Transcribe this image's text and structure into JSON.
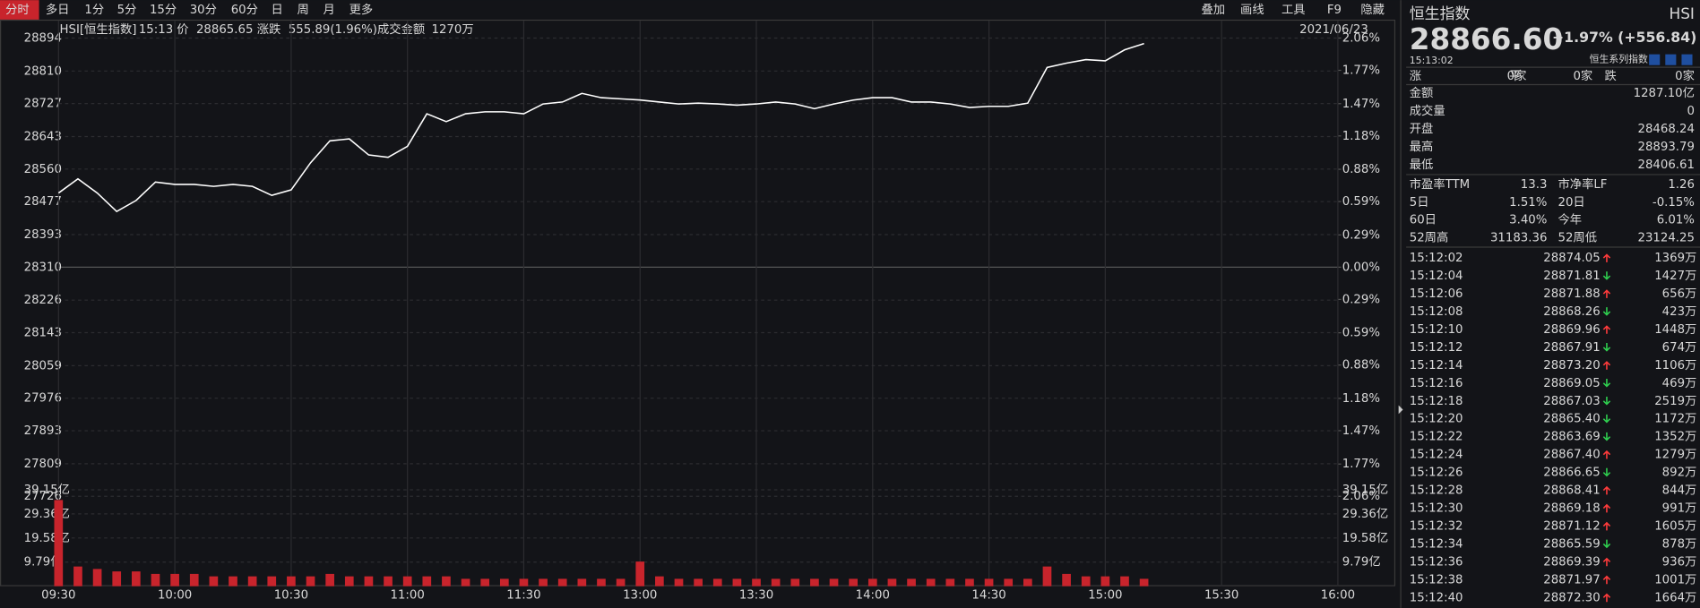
{
  "toolbar": {
    "periods": [
      "分时",
      "多日",
      "1分",
      "5分",
      "15分",
      "30分",
      "60分",
      "日",
      "周",
      "月",
      "更多"
    ],
    "tools": [
      "叠加",
      "画线",
      "工具",
      "F9",
      "隐藏"
    ]
  },
  "header": {
    "symbol": "HSI[恒生指数]",
    "time": "15:13",
    "price_label": "价",
    "price": "28865.65",
    "change_label": "涨跌",
    "change": "555.89(1.96%)",
    "amount_label": "成交金额",
    "amount": "1270万",
    "date": "2021/06/23"
  },
  "chart_data": [
    {
      "type": "line",
      "categories": [
        "09:30",
        "09:35",
        "09:40",
        "09:45",
        "09:50",
        "09:55",
        "10:00",
        "10:05",
        "10:10",
        "10:15",
        "10:20",
        "10:25",
        "10:30",
        "10:35",
        "10:40",
        "10:45",
        "10:50",
        "10:55",
        "11:00",
        "11:05",
        "11:10",
        "11:15",
        "11:20",
        "11:25",
        "11:30",
        "11:35",
        "11:40",
        "11:45",
        "11:50",
        "11:55",
        "13:00",
        "13:05",
        "13:10",
        "13:15",
        "13:20",
        "13:25",
        "13:30",
        "13:35",
        "13:40",
        "13:45",
        "13:50",
        "13:55",
        "14:00",
        "14:05",
        "14:10",
        "14:15",
        "14:20",
        "14:25",
        "14:30",
        "14:35",
        "14:40",
        "14:45",
        "14:50",
        "14:55",
        "15:00",
        "15:05",
        "15:10"
      ],
      "series": [
        {
          "color": "#ffffff",
          "values": [
            28499,
            28535,
            28499,
            28452,
            28480,
            28527,
            28521,
            28521,
            28516,
            28521,
            28516,
            28493,
            28507,
            28576,
            28632,
            28637,
            28596,
            28590,
            28618,
            28701,
            28681,
            28701,
            28706,
            28706,
            28701,
            28726,
            28731,
            28753,
            28742,
            28739,
            28736,
            28731,
            28726,
            28728,
            28726,
            28723,
            28726,
            28731,
            28726,
            28714,
            28726,
            28736,
            28742,
            28742,
            28731,
            28731,
            28726,
            28717,
            28720,
            28720,
            28728,
            28819,
            28830,
            28839,
            28836,
            28864,
            28880
          ]
        }
      ],
      "ylim": [
        27726,
        28894
      ],
      "yticks": [
        28894,
        28810,
        28727,
        28643,
        28560,
        28477,
        28393,
        28310,
        28226,
        28143,
        28059,
        27976,
        27893,
        27809,
        27726
      ],
      "y2lim": [
        -2.06,
        2.06
      ],
      "y2ticks": [
        {
          "value": 2.06,
          "label": "2.06%"
        },
        {
          "value": 1.77,
          "label": "1.77%"
        },
        {
          "value": 1.47,
          "label": "1.47%"
        },
        {
          "value": 1.18,
          "label": "1.18%"
        },
        {
          "value": 0.88,
          "label": "0.88%"
        },
        {
          "value": 0.59,
          "label": "0.59%"
        },
        {
          "value": 0.29,
          "label": "0.29%"
        },
        {
          "value": 0,
          "label": "0.00%"
        },
        {
          "value": -0.29,
          "label": "0.29%"
        },
        {
          "value": -0.59,
          "label": "0.59%"
        },
        {
          "value": -0.88,
          "label": "0.88%"
        },
        {
          "value": -1.18,
          "label": "1.18%"
        },
        {
          "value": -1.47,
          "label": "1.47%"
        },
        {
          "value": -1.77,
          "label": "1.77%"
        },
        {
          "value": -2.06,
          "label": "2.06%"
        }
      ],
      "xticks": [
        "09:30",
        "10:00",
        "10:30",
        "11:00",
        "11:30",
        "13:00",
        "13:30",
        "14:00",
        "14:30",
        "15:00",
        "15:30",
        "16:00"
      ],
      "grid": true
    },
    {
      "type": "bar",
      "categories": [
        "09:30",
        "09:35",
        "09:40",
        "09:45",
        "09:50",
        "09:55",
        "10:00",
        "10:05",
        "10:10",
        "10:15",
        "10:20",
        "10:25",
        "10:30",
        "10:35",
        "10:40",
        "10:45",
        "10:50",
        "10:55",
        "11:00",
        "11:05",
        "11:10",
        "11:15",
        "11:20",
        "11:25",
        "11:30",
        "11:35",
        "11:40",
        "11:45",
        "11:50",
        "11:55",
        "13:00",
        "13:05",
        "13:10",
        "13:15",
        "13:20",
        "13:25",
        "13:30",
        "13:35",
        "13:40",
        "13:45",
        "13:50",
        "13:55",
        "14:00",
        "14:05",
        "14:10",
        "14:15",
        "14:20",
        "14:25",
        "14:30",
        "14:35",
        "14:40",
        "14:45",
        "14:50",
        "14:55",
        "15:00",
        "15:05",
        "15:10"
      ],
      "values": [
        35,
        8,
        7,
        6,
        6,
        5,
        5,
        5,
        4,
        4,
        4,
        4,
        4,
        4,
        5,
        4,
        4,
        4,
        4,
        4,
        4,
        3,
        3,
        3,
        3,
        3,
        3,
        3,
        3,
        3,
        10,
        4,
        3,
        3,
        3,
        3,
        3,
        3,
        3,
        3,
        3,
        3,
        3,
        3,
        3,
        3,
        3,
        3,
        3,
        3,
        3,
        8,
        5,
        4,
        4,
        4,
        3
      ],
      "color": "#c8242c",
      "ylim": [
        0,
        39.15
      ],
      "yticks": [
        {
          "value": 39.15,
          "label": "39.15亿"
        },
        {
          "value": 29.36,
          "label": "29.36亿"
        },
        {
          "value": 19.58,
          "label": "19.58亿"
        },
        {
          "value": 9.79,
          "label": "9.79亿"
        }
      ],
      "grid": true
    }
  ],
  "sidebar": {
    "title": "恒生指数",
    "code": "HSI",
    "price": "28866.60",
    "change": "+1.97% (+556.84)",
    "time": "15:13:02",
    "series_label": "恒生系列指数",
    "breadth": [
      {
        "label": "涨",
        "value": "0家"
      },
      {
        "label": "平",
        "value": "0家"
      },
      {
        "label": "跌",
        "value": "0家"
      }
    ],
    "stats": [
      {
        "label": "金额",
        "value": "1287.10亿",
        "color": "#d8d8d8"
      },
      {
        "label": "成交量",
        "value": "0",
        "color": "#d8d8d8"
      },
      {
        "label": "开盘",
        "value": "28468.24",
        "color": "#ff3b3b"
      },
      {
        "label": "最高",
        "value": "28893.79",
        "color": "#ff3b3b"
      },
      {
        "label": "最低",
        "value": "28406.61",
        "color": "#ff3b3b"
      }
    ],
    "stats2": [
      [
        {
          "label": "市盈率TTM",
          "value": "13.3",
          "color": "#d8d8d8"
        },
        {
          "label": "市净率LF",
          "value": "1.26",
          "color": "#d8d8d8"
        }
      ],
      [
        {
          "label": "5日",
          "value": "1.51%",
          "color": "#ff3b3b"
        },
        {
          "label": "20日",
          "value": "-0.15%",
          "color": "#2fcf4f"
        }
      ],
      [
        {
          "label": "60日",
          "value": "3.40%",
          "color": "#ff3b3b"
        },
        {
          "label": "今年",
          "value": "6.01%",
          "color": "#ff3b3b"
        }
      ],
      [
        {
          "label": "52周高",
          "value": "31183.36",
          "color": "#d8d8d8"
        },
        {
          "label": "52周低",
          "value": "23124.25",
          "color": "#d8d8d8"
        }
      ]
    ],
    "trades": [
      {
        "time": "15:12:02",
        "price": "28874.05",
        "volume": "1369万"
      },
      {
        "time": "15:12:04",
        "price": "28871.81",
        "volume": "1427万"
      },
      {
        "time": "15:12:06",
        "price": "28871.88",
        "volume": "656万"
      },
      {
        "time": "15:12:08",
        "price": "28868.26",
        "volume": "423万"
      },
      {
        "time": "15:12:10",
        "price": "28869.96",
        "volume": "1448万"
      },
      {
        "time": "15:12:12",
        "price": "28867.91",
        "volume": "674万"
      },
      {
        "time": "15:12:14",
        "price": "28873.20",
        "volume": "1106万"
      },
      {
        "time": "15:12:16",
        "price": "28869.05",
        "volume": "469万"
      },
      {
        "time": "15:12:18",
        "price": "28867.03",
        "volume": "2519万"
      },
      {
        "time": "15:12:20",
        "price": "28865.40",
        "volume": "1172万"
      },
      {
        "time": "15:12:22",
        "price": "28863.69",
        "volume": "1352万"
      },
      {
        "time": "15:12:24",
        "price": "28867.40",
        "volume": "1279万"
      },
      {
        "time": "15:12:26",
        "price": "28866.65",
        "volume": "892万"
      },
      {
        "time": "15:12:28",
        "price": "28868.41",
        "volume": "844万"
      },
      {
        "time": "15:12:30",
        "price": "28869.18",
        "volume": "991万"
      },
      {
        "time": "15:12:32",
        "price": "28871.12",
        "volume": "1605万"
      },
      {
        "time": "15:12:34",
        "price": "28865.59",
        "volume": "878万"
      },
      {
        "time": "15:12:36",
        "price": "28869.39",
        "volume": "936万"
      },
      {
        "time": "15:12:38",
        "price": "28871.97",
        "volume": "1001万"
      },
      {
        "time": "15:12:40",
        "price": "28872.30",
        "volume": "1664万"
      }
    ]
  }
}
